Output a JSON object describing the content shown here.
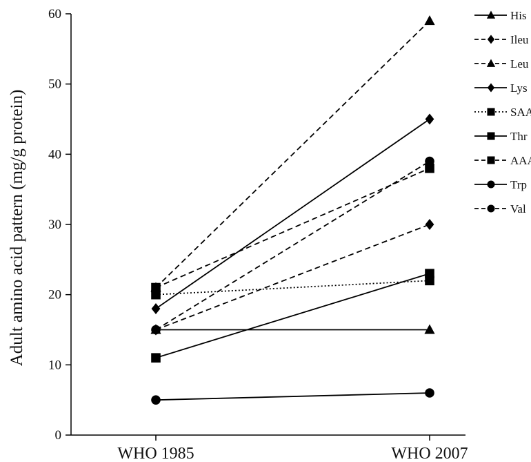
{
  "chart_data": {
    "type": "line",
    "categories": [
      "WHO 1985",
      "WHO 2007"
    ],
    "ylabel": "Adult amino acid pattern (mg/g protein)",
    "xlabel": "",
    "ylim": [
      0,
      60
    ],
    "yticks": [
      0,
      10,
      20,
      30,
      40,
      50,
      60
    ],
    "grid": false,
    "legend": "right",
    "series": [
      {
        "name": "His",
        "values": [
          15,
          15
        ],
        "marker": "triangle",
        "dash": "solid"
      },
      {
        "name": "Ileu",
        "values": [
          15,
          30
        ],
        "marker": "diamond",
        "dash": "dashed"
      },
      {
        "name": "Leu",
        "values": [
          21,
          59
        ],
        "marker": "triangle",
        "dash": "dashed"
      },
      {
        "name": "Lys",
        "values": [
          18,
          45
        ],
        "marker": "diamond",
        "dash": "solid"
      },
      {
        "name": "SAA",
        "values": [
          20,
          22
        ],
        "marker": "square",
        "dash": "dotted"
      },
      {
        "name": "Thr",
        "values": [
          11,
          23
        ],
        "marker": "square",
        "dash": "solid"
      },
      {
        "name": "AAA",
        "values": [
          21,
          38
        ],
        "marker": "square",
        "dash": "dashed"
      },
      {
        "name": "Trp",
        "values": [
          5,
          6
        ],
        "marker": "circle",
        "dash": "solid"
      },
      {
        "name": "Val",
        "values": [
          15,
          39
        ],
        "marker": "circle",
        "dash": "dashed"
      }
    ]
  }
}
